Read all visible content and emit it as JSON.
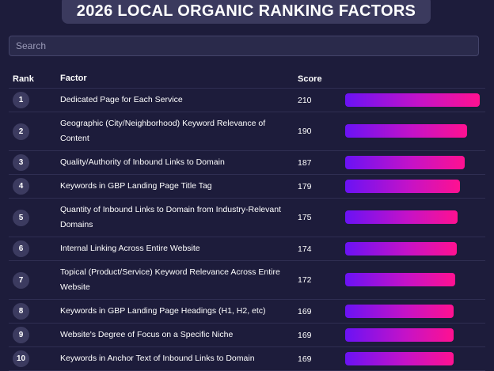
{
  "title": "2026 LOCAL ORGANIC RANKING FACTORS",
  "search_placeholder": "Search",
  "table": {
    "columns": [
      "Rank",
      "Factor",
      "Score"
    ],
    "rows": [
      [
        1,
        "Dedicated Page for Each Service",
        210
      ],
      [
        2,
        "Geographic (City/Neighborhood) Keyword Relevance of Content",
        190
      ],
      [
        3,
        "Quality/Authority of Inbound Links to Domain",
        187
      ],
      [
        4,
        "Keywords in GBP Landing Page Title Tag",
        179
      ],
      [
        5,
        "Quantity of Inbound Links to Domain from Industry-Relevant Domains",
        175
      ],
      [
        6,
        "Internal Linking Across Entire Website",
        174
      ],
      [
        7,
        "Topical (Product/Service) Keyword Relevance Across Entire Website",
        172
      ],
      [
        8,
        "Keywords in GBP Landing Page Headings (H1, H2, etc)",
        169
      ],
      [
        9,
        "Website's Degree of Focus on a Specific Niche",
        169
      ],
      [
        10,
        "Keywords in Anchor Text of Inbound Links to Domain",
        169
      ]
    ]
  }
}
